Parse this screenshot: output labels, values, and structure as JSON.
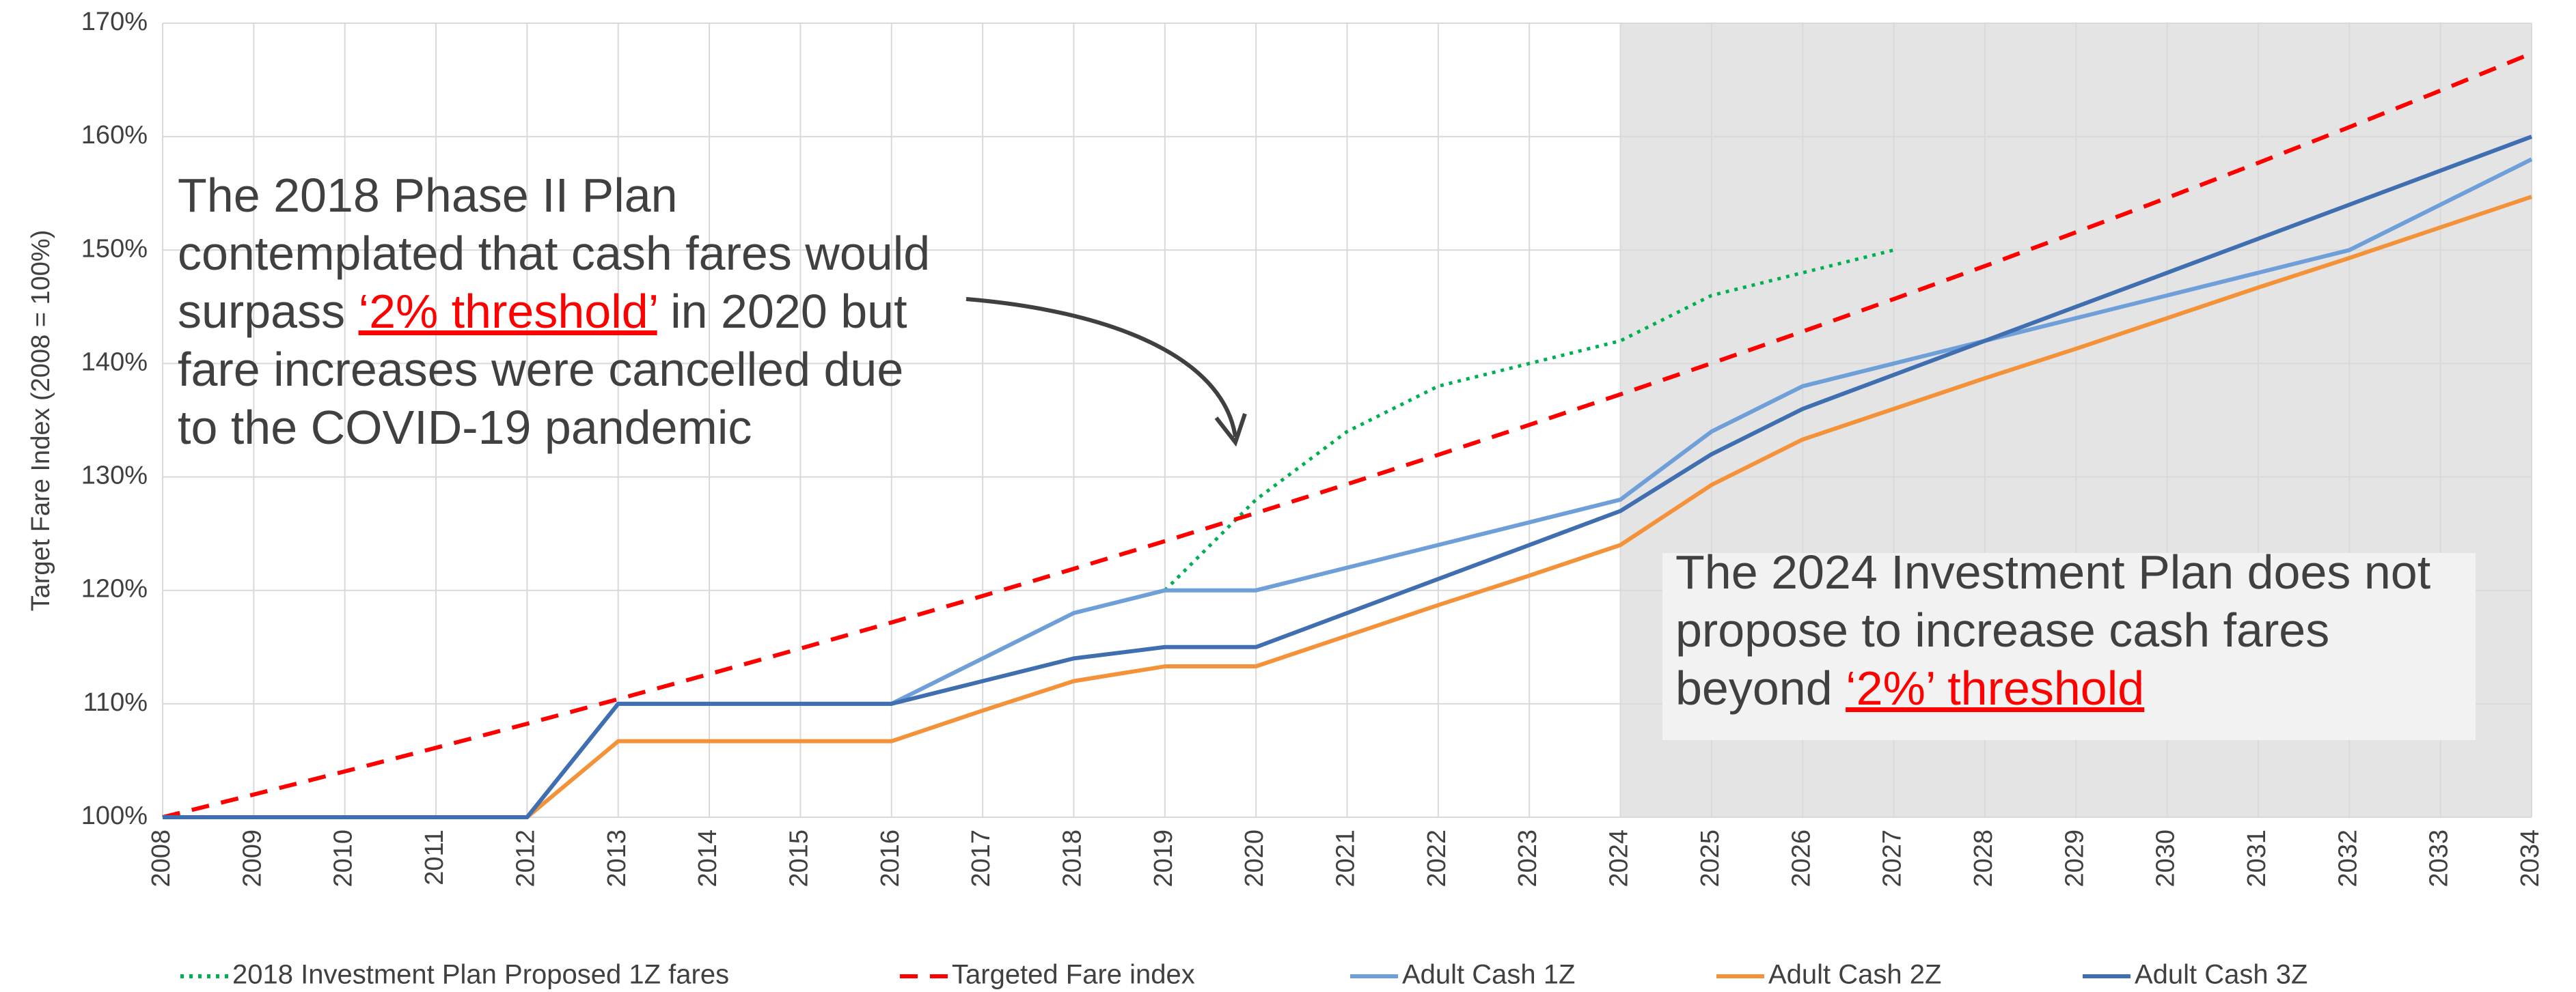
{
  "chart_data": {
    "type": "line",
    "ylabel": "Target Fare Index (2008 = 100%)",
    "x": [
      2008,
      2009,
      2010,
      2011,
      2012,
      2013,
      2014,
      2015,
      2016,
      2017,
      2018,
      2019,
      2020,
      2021,
      2022,
      2023,
      2024,
      2025,
      2026,
      2027,
      2028,
      2029,
      2030,
      2031,
      2032,
      2033,
      2034
    ],
    "xlim": [
      2008,
      2034
    ],
    "xticks": [
      2008,
      2009,
      2010,
      2011,
      2012,
      2013,
      2014,
      2015,
      2016,
      2017,
      2018,
      2019,
      2020,
      2021,
      2022,
      2023,
      2024,
      2025,
      2026,
      2027,
      2028,
      2029,
      2030,
      2031,
      2032,
      2033,
      2034
    ],
    "ylim": [
      100,
      170
    ],
    "yticks": [
      {
        "value": 100,
        "label": "100%"
      },
      {
        "value": 110,
        "label": "110%"
      },
      {
        "value": 120,
        "label": "120%"
      },
      {
        "value": 130,
        "label": "130%"
      },
      {
        "value": 140,
        "label": "140%"
      },
      {
        "value": 150,
        "label": "150%"
      },
      {
        "value": 160,
        "label": "160%"
      },
      {
        "value": 170,
        "label": "170%"
      }
    ],
    "grid": true,
    "legend": "bottom",
    "highlight": {
      "xlim": [
        2024,
        2034
      ],
      "color": "#e4e4e4"
    },
    "series": [
      {
        "name": "2018 Investment Plan Proposed 1Z fares",
        "color": "#00b050",
        "style": "dotted",
        "values": [
          null,
          null,
          null,
          null,
          null,
          null,
          null,
          null,
          null,
          null,
          null,
          120,
          128,
          134,
          138,
          140,
          142,
          146,
          148,
          150,
          null,
          null,
          null,
          null,
          null,
          null,
          null
        ]
      },
      {
        "name": "Targeted Fare index",
        "color": "#ff0000",
        "style": "dashed",
        "values": [
          100,
          102,
          104.04,
          106.12,
          108.24,
          110.41,
          112.62,
          114.87,
          117.17,
          119.51,
          121.9,
          124.34,
          126.82,
          129.36,
          131.95,
          134.59,
          137.28,
          140.02,
          142.82,
          145.68,
          148.59,
          151.57,
          154.6,
          157.69,
          160.84,
          164.06,
          167.34
        ]
      },
      {
        "name": "Adult Cash 1Z",
        "color": "#6f9fd8",
        "style": "solid",
        "values": [
          100,
          100,
          100,
          100,
          100,
          110,
          110,
          110,
          110,
          114,
          118,
          120,
          120,
          122,
          124,
          126,
          128,
          134,
          138,
          140,
          142,
          144,
          146,
          148,
          150,
          154,
          158
        ]
      },
      {
        "name": "Adult Cash 2Z",
        "color": "#f4923a",
        "style": "solid",
        "values": [
          100,
          100,
          100,
          100,
          100,
          106.7,
          106.7,
          106.7,
          106.7,
          109.4,
          112,
          113.3,
          113.3,
          116,
          118.7,
          121.3,
          124,
          129.3,
          133.3,
          136,
          138.7,
          141.3,
          144,
          146.7,
          149.3,
          152,
          154.7
        ]
      },
      {
        "name": "Adult Cash 3Z",
        "color": "#3f6fb0",
        "style": "solid",
        "values": [
          100,
          100,
          100,
          100,
          100,
          110,
          110,
          110,
          110,
          112,
          114,
          115,
          115,
          118,
          121,
          124,
          127,
          132,
          136,
          139,
          142,
          145,
          148,
          151,
          154,
          157,
          160
        ]
      }
    ],
    "annotations": [
      {
        "lines": [
          [
            "The 2018 Phase II Plan"
          ],
          [
            "contemplated that cash fares would"
          ],
          [
            "surpass ",
            {
              "text": "‘2% threshold’",
              "emphasis": true
            },
            " in 2020 but"
          ],
          [
            "fare increases were cancelled due"
          ],
          [
            "to the COVID-19 pandemic"
          ]
        ]
      },
      {
        "lines": [
          [
            "The 2024 Investment Plan does not"
          ],
          [
            "propose to increase cash fares"
          ],
          [
            "beyond ",
            {
              "text": "‘2%’ threshold",
              "emphasis": true
            }
          ]
        ]
      }
    ]
  }
}
